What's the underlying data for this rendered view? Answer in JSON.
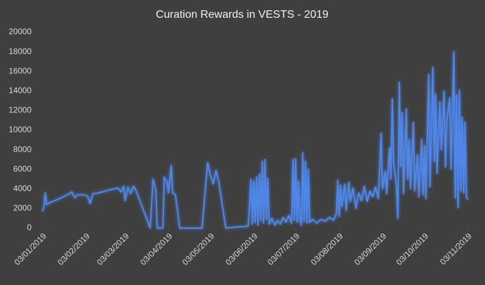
{
  "chart_data": {
    "type": "line",
    "title": "Curation Rewards in VESTS - 2019",
    "color": "#4f86e8",
    "glow": true,
    "x": [
      "2019-01-03",
      "2019-01-04",
      "2019-01-05",
      "2019-01-06",
      "2019-01-08",
      "2019-01-15",
      "2019-01-22",
      "2019-01-24",
      "2019-01-26",
      "2019-01-28",
      "2019-02-01",
      "2019-02-04",
      "2019-02-06",
      "2019-02-08",
      "2019-02-12",
      "2019-02-20",
      "2019-02-26",
      "2019-02-28",
      "2019-03-02",
      "2019-03-03",
      "2019-03-05",
      "2019-03-07",
      "2019-03-09",
      "2019-03-11",
      "2019-03-21",
      "2019-03-23",
      "2019-03-24",
      "2019-03-25",
      "2019-03-26",
      "2019-03-30",
      "2019-03-31",
      "2019-04-02",
      "2019-04-03",
      "2019-04-05",
      "2019-04-06",
      "2019-04-08",
      "2019-04-11",
      "2019-04-27",
      "2019-05-01",
      "2019-05-03",
      "2019-05-05",
      "2019-05-07",
      "2019-05-09",
      "2019-05-14",
      "2019-05-20",
      "2019-05-26",
      "2019-05-30",
      "2019-06-01",
      "2019-06-02",
      "2019-06-03",
      "2019-06-04",
      "2019-06-05",
      "2019-06-06",
      "2019-06-07",
      "2019-06-08",
      "2019-06-09",
      "2019-06-10",
      "2019-06-11",
      "2019-06-12",
      "2019-06-13",
      "2019-06-14",
      "2019-06-16",
      "2019-06-18",
      "2019-06-20",
      "2019-06-22",
      "2019-06-24",
      "2019-06-26",
      "2019-06-28",
      "2019-06-30",
      "2019-07-01",
      "2019-07-02",
      "2019-07-03",
      "2019-07-04",
      "2019-07-05",
      "2019-07-06",
      "2019-07-07",
      "2019-07-08",
      "2019-07-09",
      "2019-07-10",
      "2019-07-11",
      "2019-07-12",
      "2019-07-13",
      "2019-07-15",
      "2019-07-18",
      "2019-07-21",
      "2019-07-24",
      "2019-07-27",
      "2019-07-30",
      "2019-08-01",
      "2019-08-02",
      "2019-08-03",
      "2019-08-04",
      "2019-08-05",
      "2019-08-07",
      "2019-08-08",
      "2019-08-10",
      "2019-08-11",
      "2019-08-13",
      "2019-08-15",
      "2019-08-17",
      "2019-08-19",
      "2019-08-21",
      "2019-08-23",
      "2019-08-25",
      "2019-08-27",
      "2019-08-29",
      "2019-08-31",
      "2019-09-02",
      "2019-09-03",
      "2019-09-05",
      "2019-09-06",
      "2019-09-08",
      "2019-09-09",
      "2019-09-10",
      "2019-09-11",
      "2019-09-13",
      "2019-09-14",
      "2019-09-15",
      "2019-09-16",
      "2019-09-17",
      "2019-09-18",
      "2019-09-20",
      "2019-09-21",
      "2019-09-22",
      "2019-09-23",
      "2019-09-25",
      "2019-09-26",
      "2019-09-28",
      "2019-09-29",
      "2019-10-01",
      "2019-10-02",
      "2019-10-03",
      "2019-10-04",
      "2019-10-06",
      "2019-10-07",
      "2019-10-09",
      "2019-10-10",
      "2019-10-11",
      "2019-10-12",
      "2019-10-14",
      "2019-10-15",
      "2019-10-17",
      "2019-10-18",
      "2019-10-19",
      "2019-10-21",
      "2019-10-22",
      "2019-10-24",
      "2019-10-25",
      "2019-10-26",
      "2019-10-27",
      "2019-10-28",
      "2019-10-29",
      "2019-10-30",
      "2019-10-31",
      "2019-11-01",
      "2019-11-02",
      "2019-11-03"
    ],
    "values": [
      1700,
      2200,
      3600,
      2400,
      2600,
      3000,
      3500,
      3700,
      3100,
      3400,
      3400,
      3300,
      2500,
      3500,
      3600,
      3900,
      4100,
      3700,
      4300,
      2800,
      4200,
      3500,
      4300,
      3800,
      0,
      5000,
      4400,
      3900,
      0,
      0,
      5200,
      4700,
      3600,
      6400,
      3600,
      3400,
      0,
      0,
      6700,
      5400,
      4500,
      5900,
      4700,
      0,
      100,
      150,
      200,
      5000,
      400,
      4800,
      600,
      5200,
      300,
      5500,
      800,
      6800,
      500,
      7000,
      900,
      5100,
      400,
      1000,
      300,
      800,
      400,
      1100,
      600,
      1300,
      500,
      7000,
      800,
      7100,
      600,
      4800,
      900,
      300,
      7700,
      700,
      6800,
      500,
      6000,
      600,
      900,
      500,
      900,
      700,
      1100,
      800,
      1500,
      4900,
      1200,
      4400,
      2200,
      4500,
      1800,
      4700,
      2700,
      4100,
      2000,
      3600,
      2800,
      4300,
      2700,
      3800,
      3200,
      4200,
      3000,
      9700,
      4000,
      5800,
      3500,
      8200,
      5000,
      13200,
      6800,
      4200,
      1000,
      14900,
      6300,
      11800,
      3500,
      12200,
      5000,
      9000,
      4000,
      10800,
      3800,
      7500,
      3200,
      9100,
      3400,
      8400,
      3000,
      15700,
      4200,
      16400,
      6800,
      13700,
      5600,
      12900,
      8000,
      14000,
      6200,
      11000,
      13300,
      6000,
      18000,
      3100,
      13600,
      2100,
      14100,
      3800,
      11300,
      3600,
      10800,
      3200,
      2900
    ],
    "xlim": [
      "2019-01-03",
      "2019-11-03"
    ],
    "xticks": [
      {
        "value": "2019-01-03",
        "label": "03/01/2019"
      },
      {
        "value": "2019-02-03",
        "label": "03/02/2019"
      },
      {
        "value": "2019-03-03",
        "label": "03/03/2019"
      },
      {
        "value": "2019-04-03",
        "label": "03/04/2019"
      },
      {
        "value": "2019-05-03",
        "label": "03/05/2019"
      },
      {
        "value": "2019-06-03",
        "label": "03/06/2019"
      },
      {
        "value": "2019-07-03",
        "label": "03/07/2019"
      },
      {
        "value": "2019-08-03",
        "label": "03/08/2019"
      },
      {
        "value": "2019-09-03",
        "label": "03/09/2019"
      },
      {
        "value": "2019-10-03",
        "label": "03/10/2019"
      },
      {
        "value": "2019-11-03",
        "label": "03/11/2019"
      }
    ],
    "ylim": [
      0,
      20000
    ],
    "yticks": [
      0,
      2000,
      4000,
      6000,
      8000,
      10000,
      12000,
      14000,
      16000,
      18000,
      20000
    ]
  }
}
